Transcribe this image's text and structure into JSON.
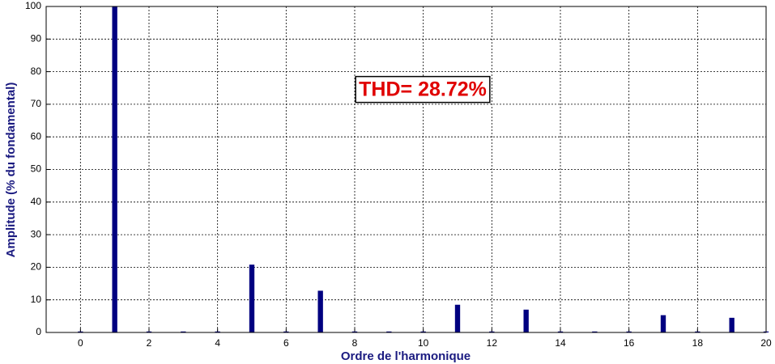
{
  "chart_data": {
    "type": "bar",
    "xlabel": "Ordre de l'harmonique",
    "ylabel": "Amplitude (% du fondamental)",
    "annotation": "THD= 28.72%",
    "x": [
      0,
      1,
      2,
      3,
      4,
      5,
      6,
      7,
      8,
      9,
      10,
      11,
      12,
      13,
      14,
      15,
      16,
      17,
      18,
      19,
      20
    ],
    "values": [
      0.3,
      100,
      0.3,
      0.3,
      0.3,
      20.8,
      0.3,
      12.8,
      0.3,
      0.3,
      0.3,
      8.5,
      0.3,
      7,
      0.3,
      0.3,
      0.3,
      5.3,
      0.3,
      4.5,
      0.3
    ],
    "color": "#000080",
    "xlim": [
      -1,
      20
    ],
    "xticks": [
      0,
      2,
      4,
      6,
      8,
      10,
      12,
      14,
      16,
      18,
      20
    ],
    "ylim": [
      0,
      100
    ],
    "yticks": [
      0,
      10,
      20,
      30,
      40,
      50,
      60,
      70,
      80,
      90,
      100
    ],
    "grid": true
  }
}
